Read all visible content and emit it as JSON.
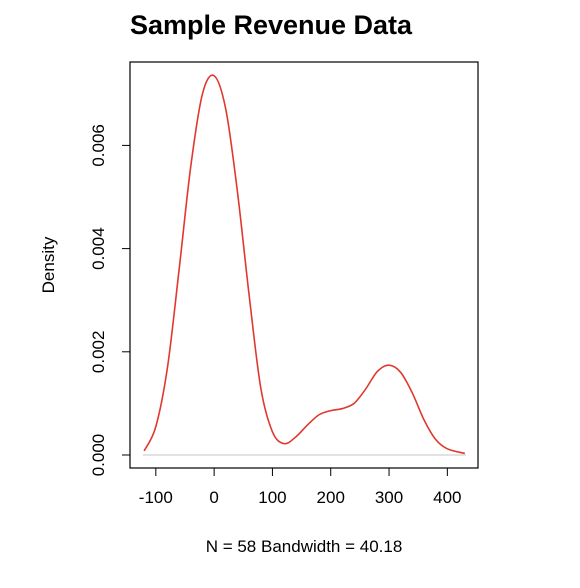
{
  "chart_data": {
    "type": "line",
    "title": "Sample Revenue Data",
    "xlabel": "N = 58   Bandwidth = 40.18",
    "ylabel": "Density",
    "xlim": [
      -122,
      432
    ],
    "ylim": [
      0,
      0.0075
    ],
    "xticks": [
      -100,
      0,
      100,
      200,
      300,
      400
    ],
    "xtick_labels": [
      "-100",
      "0",
      "100",
      "200",
      "300",
      "400"
    ],
    "yticks": [
      0.0,
      0.002,
      0.004,
      0.006
    ],
    "ytick_labels": [
      "0.000",
      "0.002",
      "0.004",
      "0.006"
    ],
    "grid": false,
    "legend": "none",
    "colors": {
      "line": "#e0382e",
      "frame": "#000000",
      "baseline": "#d9d9d9"
    },
    "series": [
      {
        "x": [
          -120,
          -100,
          -80,
          -60,
          -40,
          -20,
          0,
          20,
          40,
          60,
          80,
          100,
          120,
          140,
          160,
          180,
          200,
          220,
          240,
          260,
          280,
          300,
          320,
          340,
          360,
          380,
          400,
          430
        ],
        "values": [
          8e-05,
          0.00055,
          0.0017,
          0.0036,
          0.0056,
          0.007,
          0.00735,
          0.0067,
          0.0051,
          0.0031,
          0.0013,
          0.00045,
          0.00022,
          0.00035,
          0.00058,
          0.00078,
          0.00086,
          0.0009,
          0.001,
          0.00128,
          0.00162,
          0.00174,
          0.0016,
          0.0012,
          0.00068,
          0.0003,
          0.00012,
          3e-05
        ]
      }
    ]
  }
}
